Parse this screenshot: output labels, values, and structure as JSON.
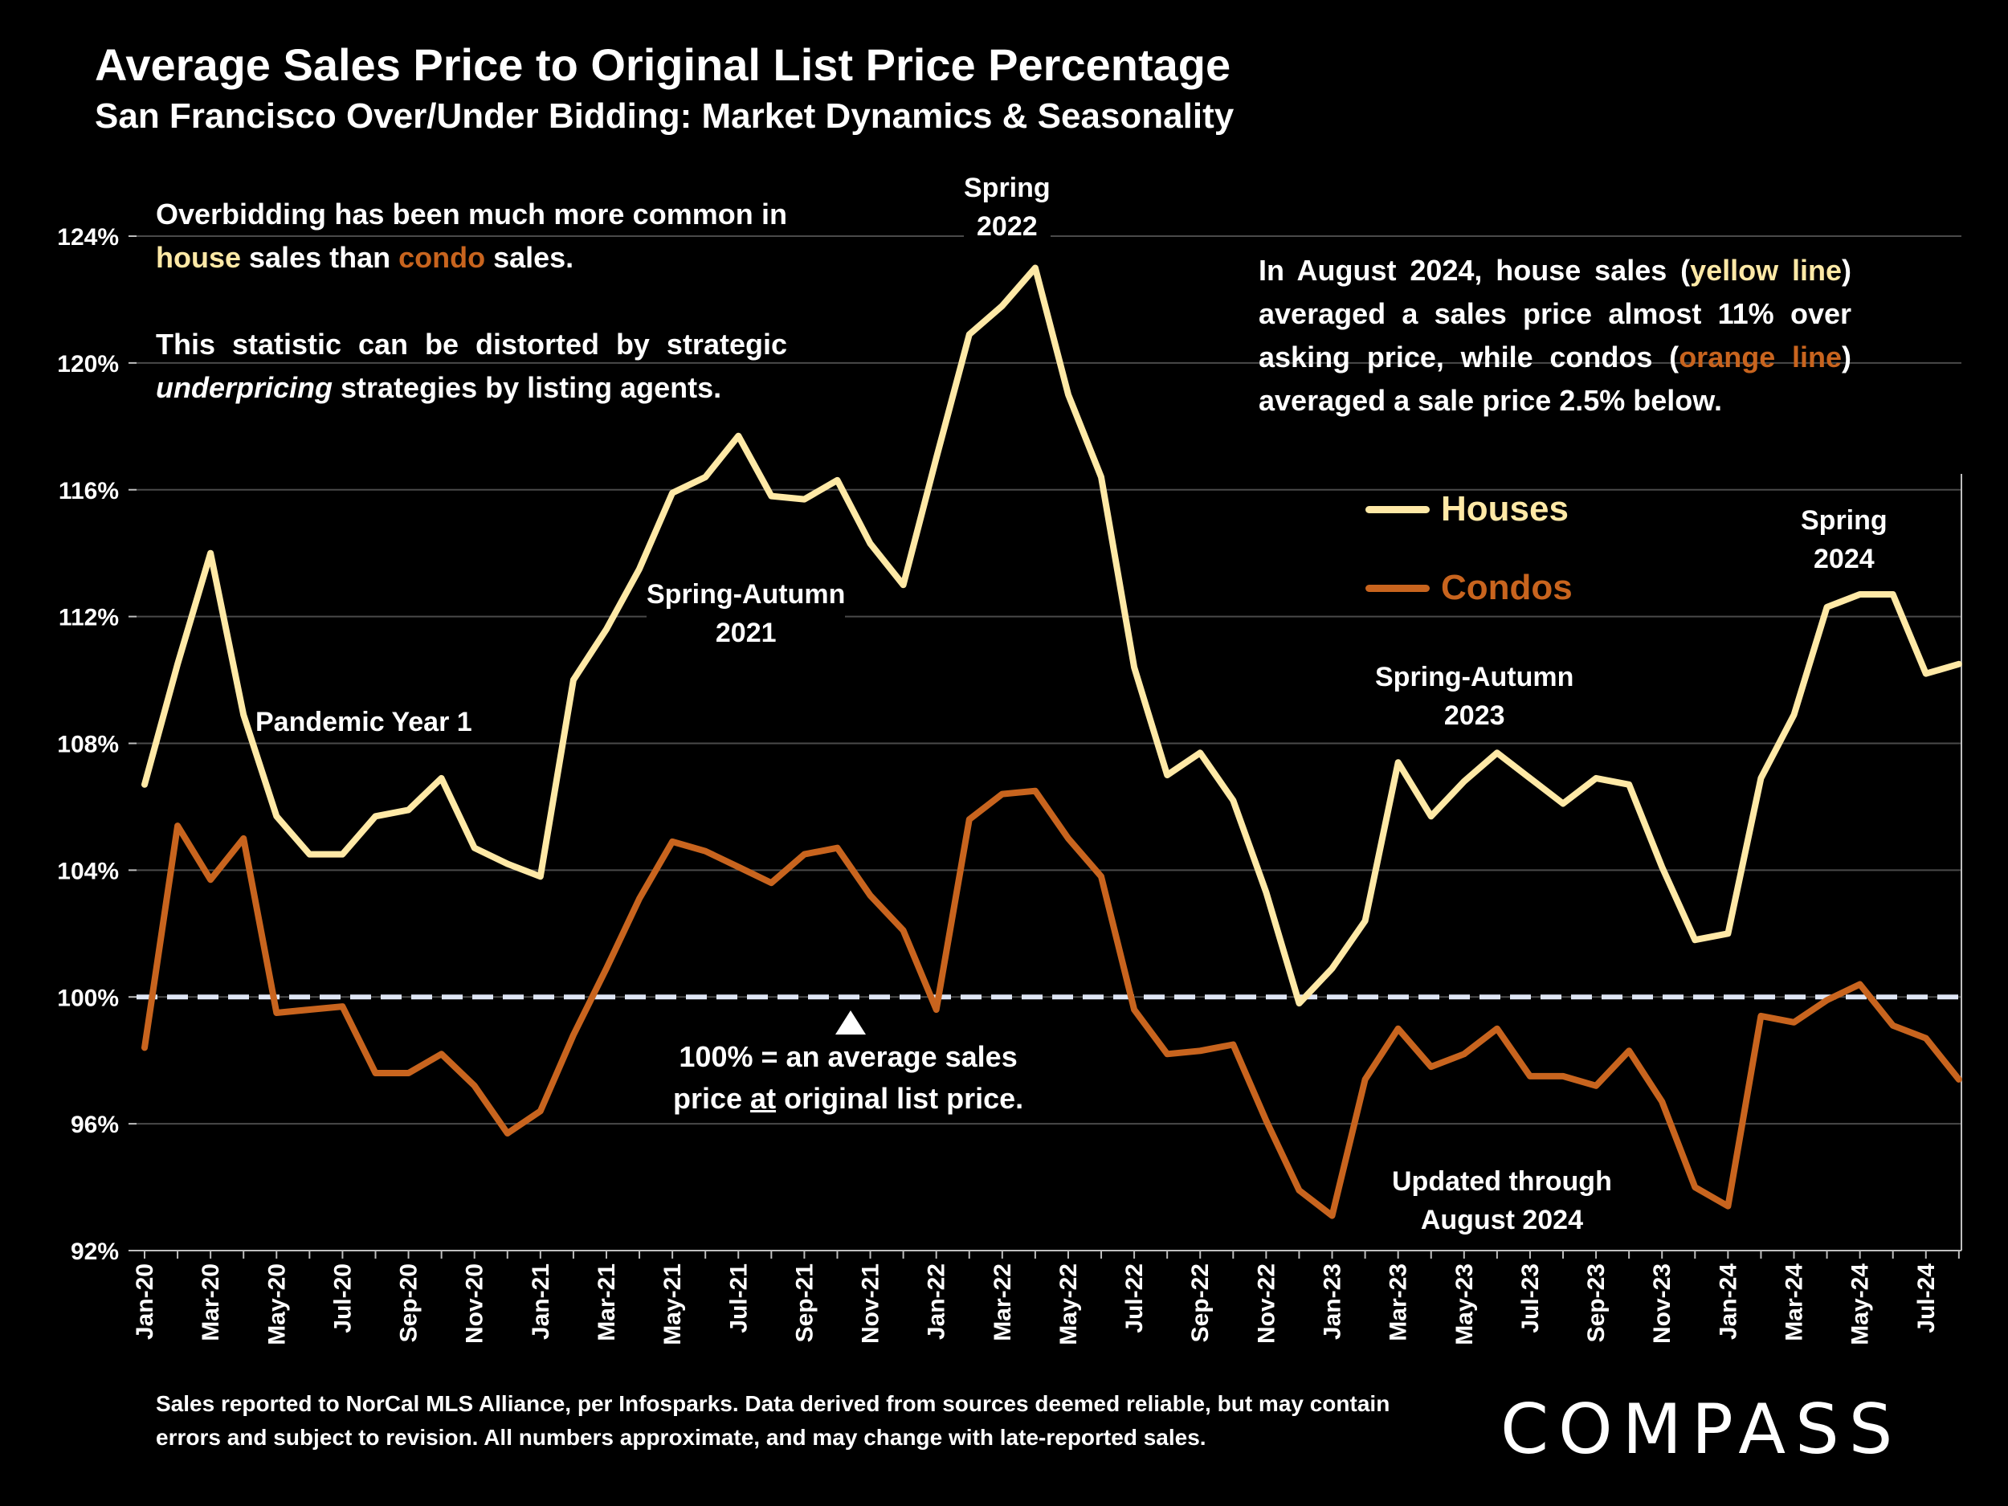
{
  "title": "Average Sales Price to Original List Price Percentage",
  "subtitle": "San Francisco Over/Under Bidding: Market Dynamics & Seasonality",
  "notes": {
    "left_p1_a": "Overbidding has been much more common in ",
    "left_p1_house": "house",
    "left_p1_b": " sales than ",
    "left_p1_condo": "condo",
    "left_p1_c": " sales.",
    "left_p2_a": "This statistic can be distorted by strategic ",
    "left_p2_em": "underpricing",
    "left_p2_b": " strategies by listing agents.",
    "right_a": "In August 2024, house sales (",
    "right_yellow": "yellow line",
    "right_b": ") averaged a sales price almost 11% over asking price, while condos (",
    "right_orange": "orange line",
    "right_c": ") averaged a sale price 2.5% below."
  },
  "annotations": {
    "spring2022_l1": "Spring",
    "spring2022_l2": "2022",
    "sa2021_l1": "Spring-Autumn",
    "sa2021_l2": "2021",
    "pandemic": "Pandemic Year 1",
    "sa2023_l1": "Spring-Autumn",
    "sa2023_l2": "2023",
    "spring2024_l1": "Spring",
    "spring2024_l2": "2024",
    "hundred_l1": "100% = an average sales",
    "hundred_l2a": "price ",
    "hundred_l2u": "at",
    "hundred_l2b": " original list price.",
    "updated_l1": "Updated through",
    "updated_l2": "August 2024"
  },
  "footnote": "Sales reported to NorCal MLS Alliance, per Infosparks. Data derived from sources deemed reliable, but may contain errors and subject to revision. All numbers approximate, and may change with late-reported sales.",
  "logo": "COMPASS",
  "colors": {
    "houses": "#ffe9a6",
    "condos": "#c8641e",
    "reference_line": "#dfe6f5",
    "grid": "#4a4a4a"
  },
  "chart_data": {
    "type": "line",
    "title": "Average Sales Price to Original List Price Percentage",
    "subtitle": "San Francisco Over/Under Bidding: Market Dynamics & Seasonality",
    "x": [
      "Jan-20",
      "Feb-20",
      "Mar-20",
      "Apr-20",
      "May-20",
      "Jun-20",
      "Jul-20",
      "Aug-20",
      "Sep-20",
      "Oct-20",
      "Nov-20",
      "Dec-20",
      "Jan-21",
      "Feb-21",
      "Mar-21",
      "Apr-21",
      "May-21",
      "Jun-21",
      "Jul-21",
      "Aug-21",
      "Sep-21",
      "Oct-21",
      "Nov-21",
      "Dec-21",
      "Jan-22",
      "Feb-22",
      "Mar-22",
      "Apr-22",
      "May-22",
      "Jun-22",
      "Jul-22",
      "Aug-22",
      "Sep-22",
      "Oct-22",
      "Nov-22",
      "Dec-22",
      "Jan-23",
      "Feb-23",
      "Mar-23",
      "Apr-23",
      "May-23",
      "Jun-23",
      "Jul-23",
      "Aug-23",
      "Sep-23",
      "Oct-23",
      "Nov-23",
      "Dec-23",
      "Jan-24",
      "Feb-24",
      "Mar-24",
      "Apr-24",
      "May-24",
      "Jun-24",
      "Jul-24",
      "Aug-24"
    ],
    "tick_labels": [
      "Jan-20",
      "Mar-20",
      "May-20",
      "Jul-20",
      "Sep-20",
      "Nov-20",
      "Jan-21",
      "Mar-21",
      "May-21",
      "Jul-21",
      "Sep-21",
      "Nov-21",
      "Jan-22",
      "Mar-22",
      "May-22",
      "Jul-22",
      "Sep-22",
      "Nov-22",
      "Jan-23",
      "Mar-23",
      "May-23",
      "Jul-23",
      "Sep-23",
      "Nov-23",
      "Jan-24",
      "Mar-24",
      "May-24",
      "Jul-24"
    ],
    "y_ticks": [
      "92%",
      "96%",
      "100%",
      "104%",
      "108%",
      "112%",
      "116%",
      "120%",
      "124%"
    ],
    "ylim": [
      92,
      124
    ],
    "reference_value": 100,
    "grid": true,
    "legend_position": "right",
    "series": [
      {
        "name": "Houses",
        "values": [
          106.7,
          110.5,
          114.0,
          108.9,
          105.7,
          104.5,
          104.5,
          105.7,
          105.9,
          106.9,
          104.7,
          104.2,
          103.8,
          110.0,
          111.6,
          113.5,
          115.9,
          116.4,
          117.7,
          115.8,
          115.7,
          116.3,
          114.3,
          113.0,
          117.0,
          120.9,
          121.8,
          123.0,
          119.0,
          116.4,
          110.4,
          107.0,
          107.7,
          106.2,
          103.3,
          99.8,
          100.9,
          102.4,
          107.4,
          105.7,
          106.8,
          107.7,
          106.9,
          106.1,
          106.9,
          106.7,
          104.1,
          101.8,
          102.0,
          106.9,
          108.9,
          112.3,
          112.7,
          112.7,
          110.2,
          110.5
        ]
      },
      {
        "name": "Condos",
        "values": [
          98.4,
          105.4,
          103.7,
          105.0,
          99.5,
          99.6,
          99.7,
          97.6,
          97.6,
          98.2,
          97.2,
          95.7,
          96.4,
          98.8,
          100.9,
          103.1,
          104.9,
          104.6,
          104.1,
          103.6,
          104.5,
          104.7,
          103.2,
          102.1,
          99.6,
          105.6,
          106.4,
          106.5,
          105.0,
          103.8,
          99.6,
          98.2,
          98.3,
          98.5,
          96.1,
          93.9,
          93.1,
          97.4,
          99.0,
          97.8,
          98.2,
          99.0,
          97.5,
          97.5,
          97.2,
          98.3,
          96.7,
          94.0,
          93.4,
          99.4,
          99.2,
          99.9,
          100.4,
          99.1,
          98.7,
          97.4
        ]
      }
    ]
  }
}
